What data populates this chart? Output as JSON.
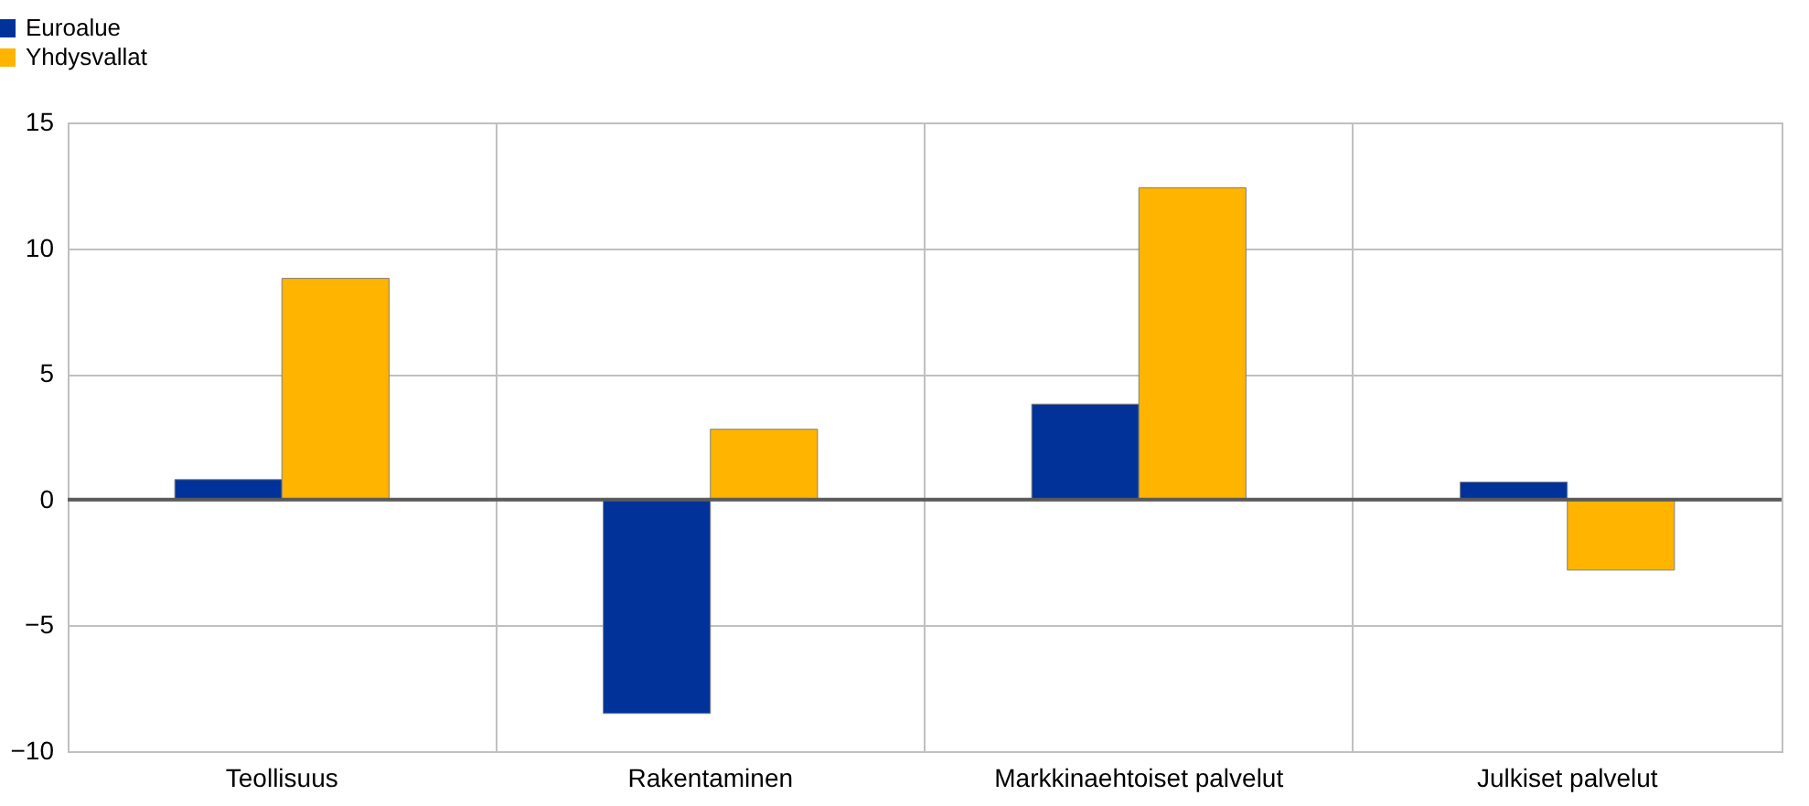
{
  "chart_data": {
    "type": "bar",
    "categories": [
      "Teollisuus",
      "Rakentaminen",
      "Markkinaehtoiset palvelut",
      "Julkiset palvelut"
    ],
    "series": [
      {
        "name": "Euroalue",
        "color": "#003299",
        "values": [
          0.8,
          -8.5,
          3.8,
          0.7
        ]
      },
      {
        "name": "Yhdysvallat",
        "color": "#ffb400",
        "values": [
          8.8,
          2.8,
          12.4,
          -2.8
        ]
      }
    ],
    "ylim": [
      -10,
      15
    ],
    "yticks": [
      -10,
      -5,
      0,
      5,
      10,
      15
    ],
    "grid": true,
    "legend": "top left",
    "ref_lines": [
      {
        "axis": "y",
        "value": 0,
        "color": "#595959"
      }
    ]
  }
}
